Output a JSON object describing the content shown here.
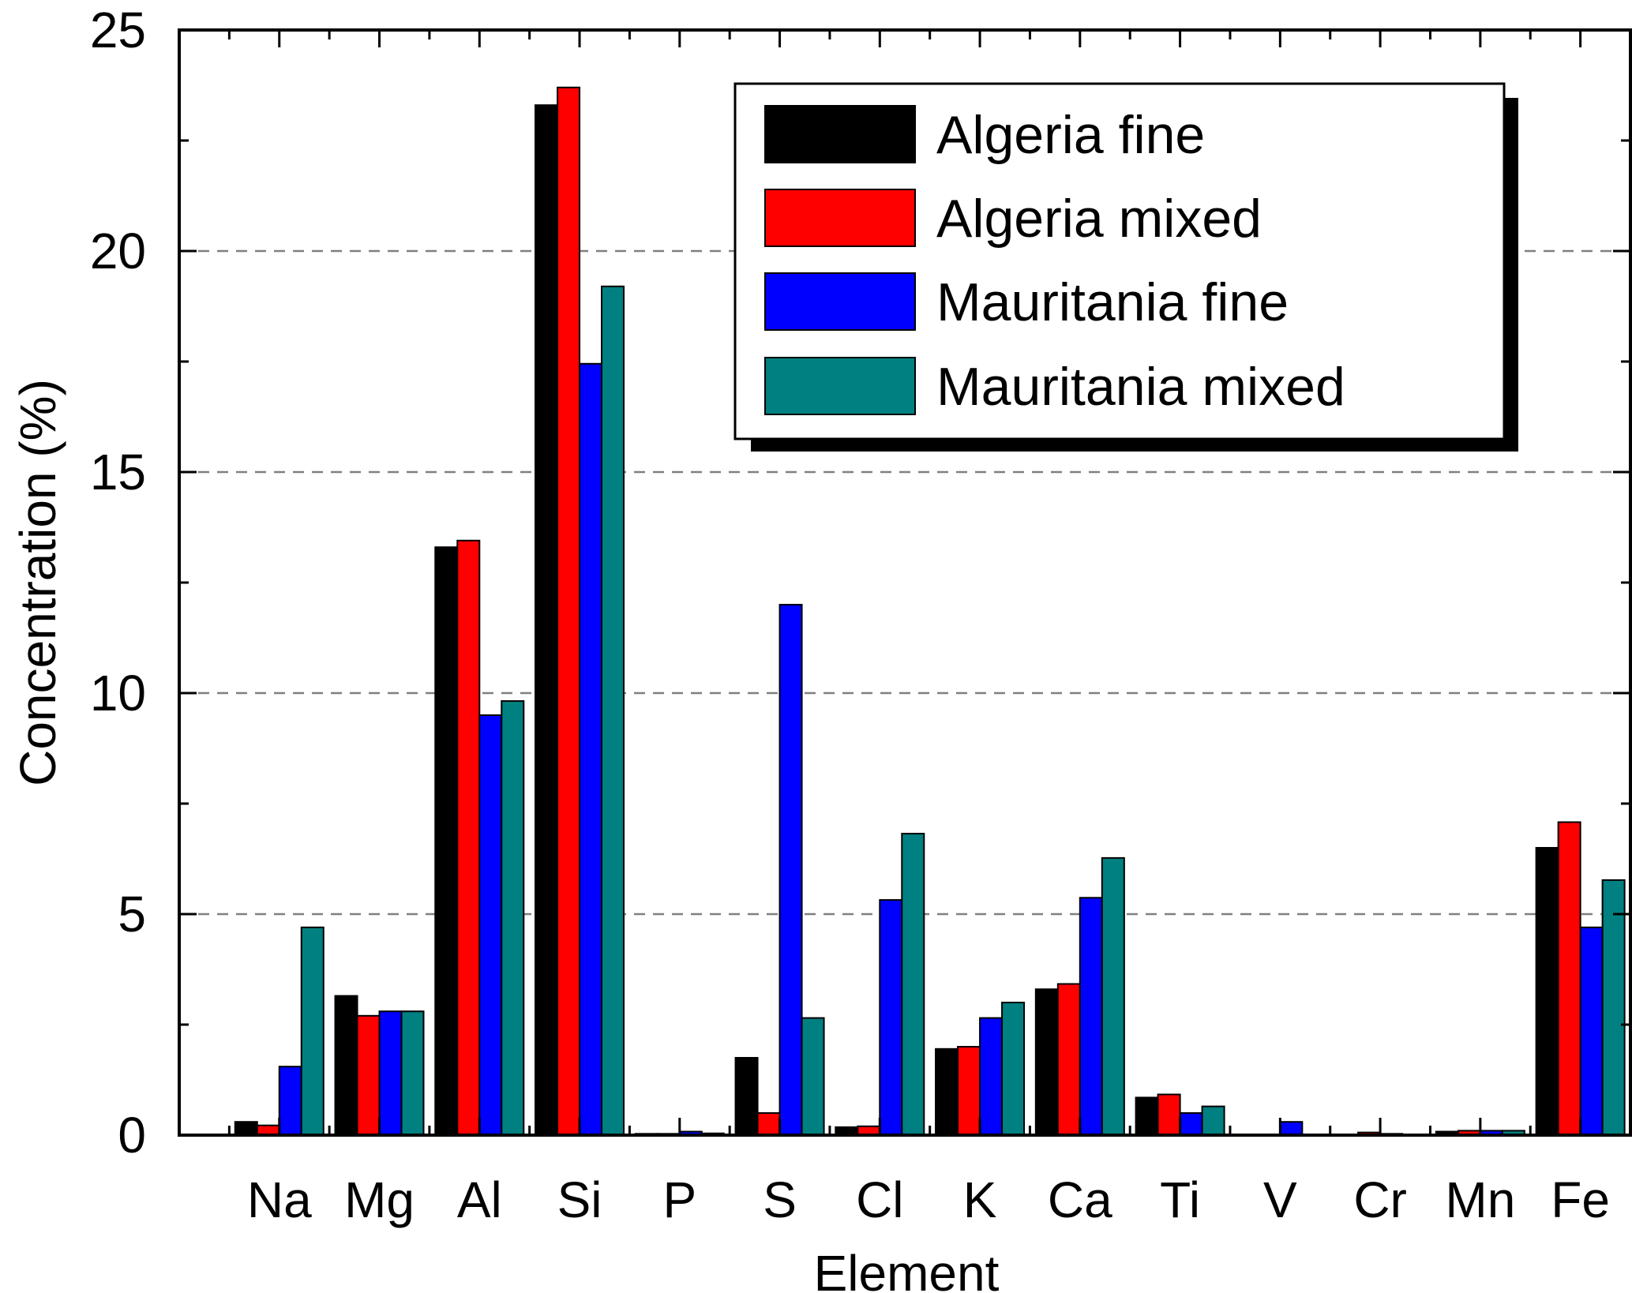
{
  "chart_data": {
    "type": "bar",
    "title": "",
    "xlabel": "Element",
    "ylabel": "Concentration (%)",
    "ylim": [
      0,
      25
    ],
    "yticks": [
      0,
      5,
      10,
      15,
      20,
      25
    ],
    "grid": "horizontal dashed at 5, 10, 15, 20",
    "legend_position": "top-right",
    "categories": [
      "Na",
      "Mg",
      "Al",
      "Si",
      "P",
      "S",
      "Cl",
      "K",
      "Ca",
      "Ti",
      "V",
      "Cr",
      "Mn",
      "Fe"
    ],
    "series": [
      {
        "name": "Algeria fine",
        "color": "#000000",
        "values": [
          0.3,
          3.15,
          13.3,
          23.3,
          0.03,
          1.75,
          0.18,
          1.95,
          3.3,
          0.85,
          0.0,
          0.0,
          0.08,
          6.5
        ]
      },
      {
        "name": "Algeria mixed",
        "color": "#ff0000",
        "values": [
          0.22,
          2.7,
          13.45,
          23.7,
          0.03,
          0.5,
          0.2,
          2.0,
          3.42,
          0.92,
          0.0,
          0.06,
          0.1,
          7.08
        ]
      },
      {
        "name": "Mauritania fine",
        "color": "#0000ff",
        "values": [
          1.55,
          2.8,
          9.5,
          17.45,
          0.08,
          12.0,
          5.32,
          2.65,
          5.37,
          0.5,
          0.3,
          0.03,
          0.1,
          4.7
        ]
      },
      {
        "name": "Mauritania mixed",
        "color": "#008080",
        "values": [
          4.7,
          2.8,
          9.82,
          19.2,
          0.04,
          2.65,
          6.82,
          3.0,
          6.27,
          0.65,
          0.0,
          0.0,
          0.1,
          5.77
        ]
      }
    ]
  }
}
